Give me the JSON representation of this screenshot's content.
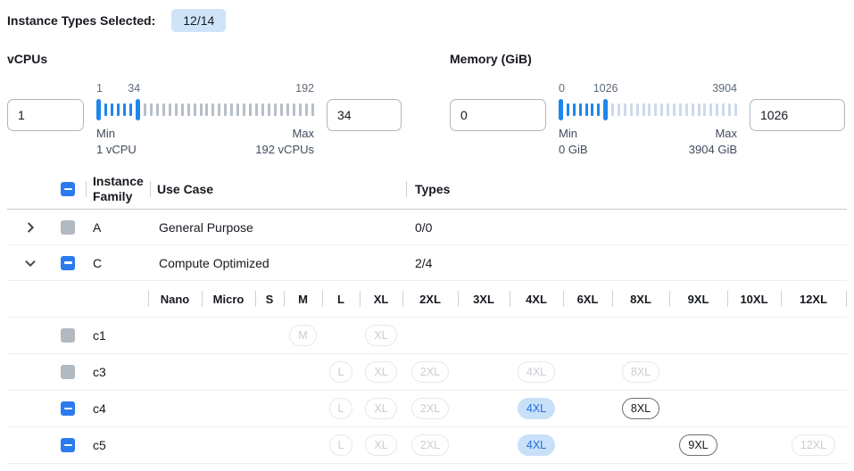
{
  "colors": {
    "accent_blue": "#2b7af0",
    "slider_blue": "#1f86ee",
    "badge_bg": "#cfe4f9",
    "selected_pill_bg": "#c9e0f9",
    "selected_pill_text": "#1c6fde",
    "disabled_gray": "#b3b9c1"
  },
  "header": {
    "label": "Instance Types Selected:",
    "badge": "12/14"
  },
  "filters": {
    "vcpus": {
      "title": "vCPUs",
      "min_input": "1",
      "max_input": "34",
      "scale_start": "1",
      "scale_current": "34",
      "scale_end": "192",
      "min_caption": "Min",
      "min_detail": "1 vCPU",
      "max_caption": "Max",
      "max_detail": "192 vCPUs",
      "range_min": 1,
      "range_max": 192,
      "selected_min": 1,
      "selected_max": 34
    },
    "memory": {
      "title": "Memory (GiB)",
      "min_input": "0",
      "max_input": "1026",
      "scale_start": "0",
      "scale_current": "1026",
      "scale_end": "3904",
      "min_caption": "Min",
      "min_detail": "0 GiB",
      "max_caption": "Max",
      "max_detail": "3904 GiB",
      "range_min": 0,
      "range_max": 3904,
      "selected_min": 0,
      "selected_max": 1026
    }
  },
  "table": {
    "columns": {
      "family": "Instance Family",
      "use_case": "Use Case",
      "types": "Types"
    },
    "families": [
      {
        "name": "A",
        "use_case": "General Purpose",
        "types": "0/0",
        "expanded": false,
        "checkbox": "disabled"
      },
      {
        "name": "C",
        "use_case": "Compute Optimized",
        "types": "2/4",
        "expanded": true,
        "checkbox": "indeterminate"
      }
    ],
    "sizes": [
      "Nano",
      "Micro",
      "S",
      "M",
      "L",
      "XL",
      "2XL",
      "3XL",
      "4XL",
      "6XL",
      "8XL",
      "9XL",
      "10XL",
      "12XL"
    ],
    "instances": [
      {
        "name": "c1",
        "checkbox": "disabled",
        "pills": [
          {
            "size": "M",
            "state": "disabled"
          },
          {
            "size": "XL",
            "state": "disabled"
          }
        ]
      },
      {
        "name": "c3",
        "checkbox": "disabled",
        "pills": [
          {
            "size": "L",
            "state": "disabled"
          },
          {
            "size": "XL",
            "state": "disabled"
          },
          {
            "size": "2XL",
            "state": "disabled"
          },
          {
            "size": "4XL",
            "state": "disabled"
          },
          {
            "size": "8XL",
            "state": "disabled"
          }
        ]
      },
      {
        "name": "c4",
        "checkbox": "indeterminate",
        "pills": [
          {
            "size": "L",
            "state": "disabled"
          },
          {
            "size": "XL",
            "state": "disabled"
          },
          {
            "size": "2XL",
            "state": "disabled"
          },
          {
            "size": "4XL",
            "state": "selected"
          },
          {
            "size": "8XL",
            "state": "enabled"
          }
        ]
      },
      {
        "name": "c5",
        "checkbox": "indeterminate",
        "pills": [
          {
            "size": "L",
            "state": "disabled"
          },
          {
            "size": "XL",
            "state": "disabled"
          },
          {
            "size": "2XL",
            "state": "disabled"
          },
          {
            "size": "4XL",
            "state": "selected"
          },
          {
            "size": "9XL",
            "state": "enabled"
          },
          {
            "size": "12XL",
            "state": "disabled"
          }
        ]
      }
    ]
  }
}
